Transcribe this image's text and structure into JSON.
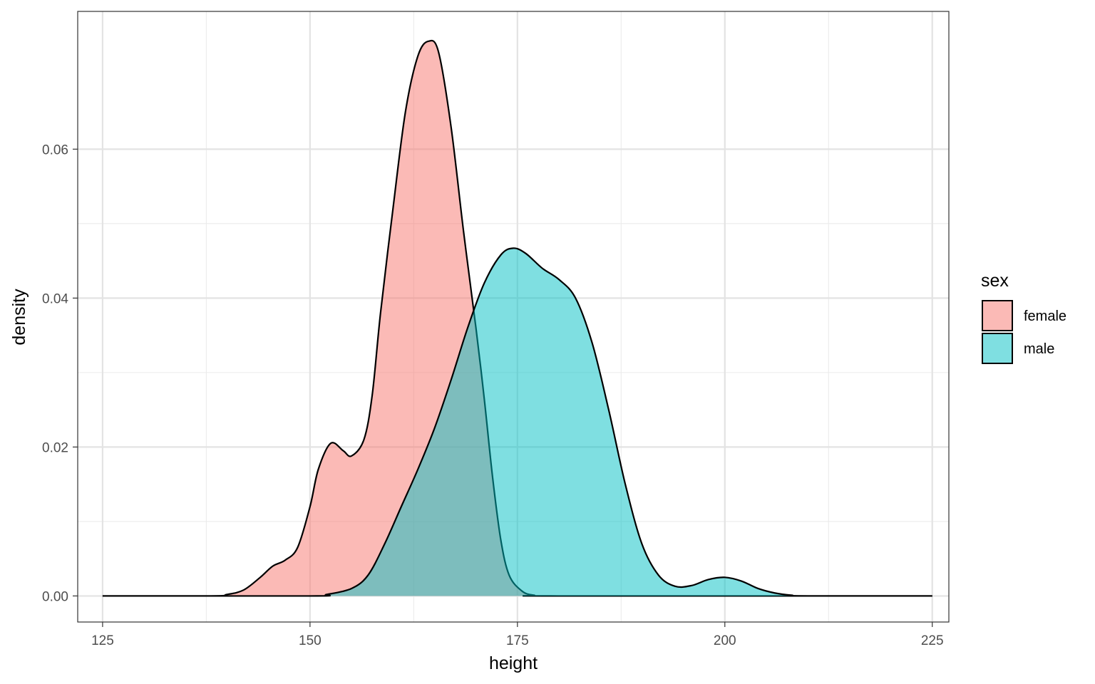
{
  "chart_data": {
    "type": "area",
    "subtype": "density",
    "title": "",
    "xlabel": "height",
    "ylabel": "density",
    "xlim": [
      122,
      227
    ],
    "ylim": [
      -0.0035,
      0.0785
    ],
    "x_ticks": [
      125,
      150,
      175,
      200,
      225
    ],
    "x_tick_labels": [
      "125",
      "150",
      "175",
      "200",
      "225"
    ],
    "y_ticks": [
      0.0,
      0.02,
      0.04,
      0.06
    ],
    "y_tick_labels": [
      "0.00",
      "0.02",
      "0.04",
      "0.06"
    ],
    "grid": true,
    "legend": {
      "title": "sex",
      "position": "right"
    },
    "series": [
      {
        "name": "female",
        "color": "#F8766D",
        "points": [
          [
            125,
            0.0
          ],
          [
            138,
            0.0
          ],
          [
            140,
            0.0002
          ],
          [
            142,
            0.0008
          ],
          [
            144,
            0.0025
          ],
          [
            145.5,
            0.004
          ],
          [
            147,
            0.0048
          ],
          [
            148.5,
            0.0065
          ],
          [
            150,
            0.012
          ],
          [
            151,
            0.017
          ],
          [
            152.5,
            0.0205
          ],
          [
            154,
            0.0195
          ],
          [
            155,
            0.0188
          ],
          [
            156.5,
            0.021
          ],
          [
            157.5,
            0.027
          ],
          [
            158.5,
            0.038
          ],
          [
            160,
            0.052
          ],
          [
            161.5,
            0.065
          ],
          [
            163,
            0.0725
          ],
          [
            164.3,
            0.0745
          ],
          [
            165.5,
            0.073
          ],
          [
            167,
            0.063
          ],
          [
            168.5,
            0.049
          ],
          [
            170,
            0.036
          ],
          [
            171,
            0.0265
          ],
          [
            172,
            0.016
          ],
          [
            173,
            0.0075
          ],
          [
            174,
            0.0028
          ],
          [
            175.5,
            0.0007
          ],
          [
            177,
            0.0001
          ],
          [
            180,
            0.0
          ],
          [
            225,
            0.0
          ]
        ]
      },
      {
        "name": "male",
        "color": "#00BFC4",
        "points": [
          [
            125,
            0.0
          ],
          [
            150,
            0.0
          ],
          [
            152,
            0.0002
          ],
          [
            155,
            0.001
          ],
          [
            157,
            0.0028
          ],
          [
            159,
            0.007
          ],
          [
            161,
            0.012
          ],
          [
            163,
            0.017
          ],
          [
            165,
            0.0225
          ],
          [
            167,
            0.029
          ],
          [
            169,
            0.036
          ],
          [
            171,
            0.042
          ],
          [
            173,
            0.0458
          ],
          [
            174.5,
            0.0467
          ],
          [
            176,
            0.046
          ],
          [
            178,
            0.044
          ],
          [
            180,
            0.0425
          ],
          [
            182,
            0.04
          ],
          [
            184,
            0.034
          ],
          [
            186,
            0.025
          ],
          [
            188,
            0.015
          ],
          [
            190,
            0.007
          ],
          [
            192,
            0.0028
          ],
          [
            194,
            0.0013
          ],
          [
            196,
            0.0014
          ],
          [
            198,
            0.0022
          ],
          [
            200,
            0.0025
          ],
          [
            202,
            0.002
          ],
          [
            204,
            0.001
          ],
          [
            206,
            0.0004
          ],
          [
            208,
            0.0001
          ],
          [
            210,
            0.0
          ],
          [
            225,
            0.0
          ]
        ]
      }
    ]
  }
}
